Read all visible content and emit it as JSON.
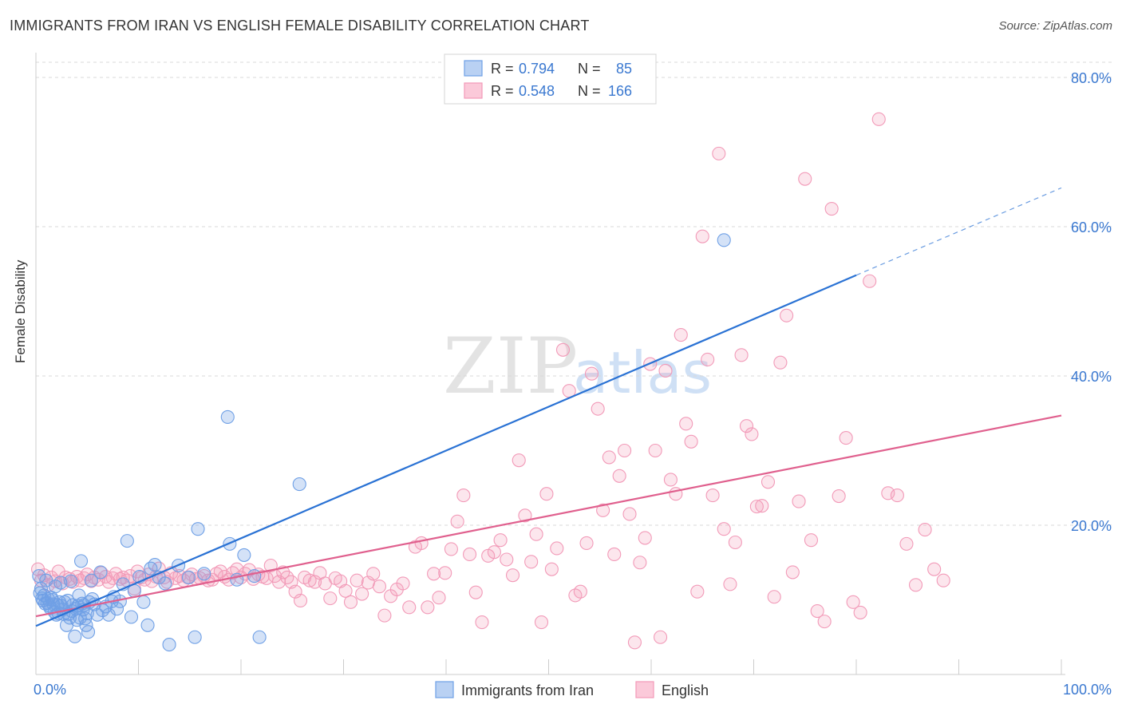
{
  "title": "IMMIGRANTS FROM IRAN VS ENGLISH FEMALE DISABILITY CORRELATION CHART",
  "source": "Source: ZipAtlas.com",
  "watermark": {
    "zip": "ZIP",
    "atlas": "atlas"
  },
  "colors": {
    "blue": "#6fa0e6",
    "blue_line": "#2a72d4",
    "pink": "#f29ab8",
    "pink_line": "#e0608e",
    "grid": "#d8d8d8",
    "tick_label": "#3a78d0"
  },
  "chart_data": {
    "type": "scatter",
    "xlabel": "",
    "ylabel": "Female Disability",
    "xlim": [
      0,
      100
    ],
    "ylim": [
      0,
      80
    ],
    "x_tick_labels": [
      "0.0%",
      "100.0%"
    ],
    "y_ticks": [
      20,
      40,
      60,
      80
    ],
    "y_tick_labels": [
      "20.0%",
      "40.0%",
      "60.0%",
      "80.0%"
    ],
    "grid": true,
    "legend_position": "top-center",
    "legend": [
      {
        "r_label": "R =",
        "r": "0.794",
        "n_label": "N =",
        "n": "85"
      },
      {
        "r_label": "R =",
        "r": "0.548",
        "n_label": "N =",
        "n": "166"
      }
    ],
    "bottom_legend": [
      "Immigrants from Iran",
      "English"
    ],
    "series": [
      {
        "name": "Immigrants from Iran",
        "trend": {
          "x0": 0,
          "y0": 6.5,
          "x1": 80,
          "y1": 53.5,
          "dash_to_x": 100,
          "dash_to_y": 65.2
        },
        "points": [
          [
            0.3,
            13.2
          ],
          [
            0.4,
            10.9
          ],
          [
            0.5,
            11.5
          ],
          [
            0.6,
            10.2
          ],
          [
            0.7,
            9.9
          ],
          [
            0.8,
            10.6
          ],
          [
            0.9,
            9.5
          ],
          [
            1.0,
            12.6
          ],
          [
            1.1,
            9.6
          ],
          [
            1.2,
            10.1
          ],
          [
            1.3,
            9.2
          ],
          [
            1.4,
            8.9
          ],
          [
            1.5,
            10.3
          ],
          [
            1.6,
            10.0
          ],
          [
            1.7,
            9.4
          ],
          [
            1.8,
            8.4
          ],
          [
            1.9,
            11.8
          ],
          [
            2.0,
            8.0
          ],
          [
            2.1,
            9.3
          ],
          [
            2.2,
            8.2
          ],
          [
            2.3,
            9.7
          ],
          [
            2.4,
            12.3
          ],
          [
            2.5,
            9.2
          ],
          [
            2.6,
            8.7
          ],
          [
            2.7,
            8.1
          ],
          [
            2.8,
            9.7
          ],
          [
            3.0,
            6.6
          ],
          [
            3.1,
            9.9
          ],
          [
            3.2,
            8.1
          ],
          [
            3.3,
            7.6
          ],
          [
            3.4,
            12.5
          ],
          [
            3.5,
            8.5
          ],
          [
            3.6,
            9.3
          ],
          [
            3.8,
            5.1
          ],
          [
            3.9,
            8.8
          ],
          [
            4.0,
            7.3
          ],
          [
            4.1,
            9.2
          ],
          [
            4.2,
            10.6
          ],
          [
            4.3,
            7.6
          ],
          [
            4.4,
            15.2
          ],
          [
            4.5,
            9.5
          ],
          [
            4.6,
            8.7
          ],
          [
            4.7,
            9.3
          ],
          [
            4.8,
            7.5
          ],
          [
            4.9,
            6.6
          ],
          [
            5.0,
            8.2
          ],
          [
            5.1,
            5.7
          ],
          [
            5.2,
            9.7
          ],
          [
            5.4,
            12.6
          ],
          [
            5.5,
            10.1
          ],
          [
            5.7,
            9.4
          ],
          [
            6.0,
            8.0
          ],
          [
            6.3,
            13.7
          ],
          [
            6.5,
            8.6
          ],
          [
            6.8,
            9.1
          ],
          [
            7.1,
            8.0
          ],
          [
            7.4,
            9.8
          ],
          [
            7.6,
            10.4
          ],
          [
            7.9,
            8.8
          ],
          [
            8.2,
            9.8
          ],
          [
            8.5,
            12.1
          ],
          [
            8.9,
            17.9
          ],
          [
            9.3,
            7.7
          ],
          [
            9.6,
            11.2
          ],
          [
            10.1,
            13.1
          ],
          [
            10.5,
            9.7
          ],
          [
            10.9,
            6.6
          ],
          [
            11.2,
            14.2
          ],
          [
            11.6,
            14.7
          ],
          [
            12.0,
            13.0
          ],
          [
            12.6,
            12.2
          ],
          [
            13.0,
            4.0
          ],
          [
            13.9,
            14.6
          ],
          [
            14.9,
            13.0
          ],
          [
            15.5,
            5.0
          ],
          [
            15.8,
            19.5
          ],
          [
            16.4,
            13.5
          ],
          [
            18.7,
            34.5
          ],
          [
            18.9,
            17.5
          ],
          [
            19.6,
            12.7
          ],
          [
            20.3,
            16.0
          ],
          [
            21.3,
            13.2
          ],
          [
            21.8,
            5.0
          ],
          [
            25.7,
            25.5
          ],
          [
            67.1,
            58.2
          ]
        ]
      },
      {
        "name": "English",
        "trend": {
          "x0": 0,
          "y0": 7.8,
          "x1": 100,
          "y1": 34.7
        },
        "points": [
          [
            0.2,
            14.1
          ],
          [
            0.5,
            12.6
          ],
          [
            0.8,
            13.3
          ],
          [
            1.2,
            12.0
          ],
          [
            1.5,
            13.0
          ],
          [
            1.9,
            12.5
          ],
          [
            2.2,
            13.8
          ],
          [
            2.6,
            12.2
          ],
          [
            2.9,
            13.0
          ],
          [
            3.3,
            12.8
          ],
          [
            3.6,
            12.4
          ],
          [
            4.0,
            13.1
          ],
          [
            4.3,
            12.6
          ],
          [
            4.7,
            12.9
          ],
          [
            5.0,
            13.4
          ],
          [
            5.4,
            12.5
          ],
          [
            5.7,
            13.0
          ],
          [
            6.1,
            12.7
          ],
          [
            6.4,
            13.6
          ],
          [
            6.8,
            13.1
          ],
          [
            7.1,
            12.4
          ],
          [
            7.5,
            12.9
          ],
          [
            7.8,
            13.5
          ],
          [
            8.2,
            12.8
          ],
          [
            8.5,
            13.0
          ],
          [
            8.9,
            12.6
          ],
          [
            9.2,
            13.2
          ],
          [
            9.6,
            11.5
          ],
          [
            9.9,
            13.8
          ],
          [
            10.3,
            13.0
          ],
          [
            10.6,
            12.7
          ],
          [
            11.0,
            13.4
          ],
          [
            11.3,
            12.5
          ],
          [
            11.7,
            13.1
          ],
          [
            12.0,
            14.2
          ],
          [
            12.5,
            13.0
          ],
          [
            12.8,
            12.4
          ],
          [
            13.2,
            13.6
          ],
          [
            13.6,
            12.9
          ],
          [
            14.0,
            13.2
          ],
          [
            14.4,
            12.6
          ],
          [
            14.8,
            13.0
          ],
          [
            15.2,
            13.4
          ],
          [
            15.6,
            12.8
          ],
          [
            16.0,
            12.9
          ],
          [
            16.4,
            13.2
          ],
          [
            16.8,
            12.6
          ],
          [
            17.2,
            12.7
          ],
          [
            17.6,
            13.5
          ],
          [
            18.0,
            13.8
          ],
          [
            18.4,
            13.1
          ],
          [
            18.8,
            12.7
          ],
          [
            19.2,
            13.6
          ],
          [
            19.6,
            14.1
          ],
          [
            20.0,
            13.0
          ],
          [
            20.4,
            13.5
          ],
          [
            20.8,
            14.0
          ],
          [
            21.2,
            12.8
          ],
          [
            21.7,
            13.4
          ],
          [
            22.1,
            13.1
          ],
          [
            22.5,
            12.9
          ],
          [
            22.9,
            14.6
          ],
          [
            23.3,
            13.2
          ],
          [
            23.7,
            12.4
          ],
          [
            24.1,
            13.7
          ],
          [
            24.5,
            13.0
          ],
          [
            24.9,
            12.4
          ],
          [
            25.3,
            11.1
          ],
          [
            25.8,
            9.9
          ],
          [
            26.2,
            13.0
          ],
          [
            26.7,
            12.6
          ],
          [
            27.2,
            12.4
          ],
          [
            27.7,
            13.6
          ],
          [
            28.2,
            12.2
          ],
          [
            28.7,
            10.2
          ],
          [
            29.2,
            12.9
          ],
          [
            29.7,
            12.5
          ],
          [
            30.2,
            11.2
          ],
          [
            30.7,
            9.7
          ],
          [
            31.3,
            12.6
          ],
          [
            31.8,
            10.8
          ],
          [
            32.4,
            12.3
          ],
          [
            32.9,
            13.5
          ],
          [
            33.5,
            11.8
          ],
          [
            34.0,
            7.9
          ],
          [
            34.6,
            10.5
          ],
          [
            35.2,
            11.4
          ],
          [
            35.8,
            12.2
          ],
          [
            36.4,
            9.0
          ],
          [
            37.0,
            17.1
          ],
          [
            37.6,
            17.6
          ],
          [
            38.2,
            9.0
          ],
          [
            38.8,
            13.5
          ],
          [
            39.3,
            10.3
          ],
          [
            39.9,
            13.6
          ],
          [
            40.5,
            16.8
          ],
          [
            41.1,
            20.5
          ],
          [
            41.7,
            24.0
          ],
          [
            42.3,
            16.1
          ],
          [
            42.9,
            11.0
          ],
          [
            43.5,
            7.0
          ],
          [
            44.1,
            15.9
          ],
          [
            44.7,
            16.4
          ],
          [
            45.3,
            18.0
          ],
          [
            45.9,
            15.4
          ],
          [
            46.5,
            13.3
          ],
          [
            47.1,
            28.7
          ],
          [
            47.7,
            21.3
          ],
          [
            48.3,
            15.1
          ],
          [
            48.8,
            18.8
          ],
          [
            49.3,
            7.0
          ],
          [
            49.8,
            24.2
          ],
          [
            50.3,
            14.1
          ],
          [
            50.8,
            16.9
          ],
          [
            51.4,
            43.5
          ],
          [
            52.0,
            38.0
          ],
          [
            52.6,
            10.6
          ],
          [
            53.1,
            11.1
          ],
          [
            53.7,
            17.6
          ],
          [
            54.2,
            40.3
          ],
          [
            54.8,
            35.6
          ],
          [
            55.3,
            22.0
          ],
          [
            55.9,
            29.1
          ],
          [
            56.4,
            16.1
          ],
          [
            56.9,
            26.6
          ],
          [
            57.4,
            30.0
          ],
          [
            57.9,
            21.5
          ],
          [
            58.4,
            4.3
          ],
          [
            58.9,
            15.0
          ],
          [
            59.4,
            18.3
          ],
          [
            59.9,
            41.6
          ],
          [
            60.4,
            30.0
          ],
          [
            60.9,
            5.0
          ],
          [
            61.4,
            40.7
          ],
          [
            61.9,
            26.1
          ],
          [
            62.4,
            24.2
          ],
          [
            62.9,
            45.5
          ],
          [
            63.4,
            33.6
          ],
          [
            63.9,
            31.2
          ],
          [
            64.5,
            11.1
          ],
          [
            65.0,
            58.7
          ],
          [
            65.5,
            42.2
          ],
          [
            66.0,
            24.0
          ],
          [
            66.6,
            69.8
          ],
          [
            67.1,
            19.5
          ],
          [
            67.7,
            12.1
          ],
          [
            68.2,
            17.7
          ],
          [
            68.8,
            42.8
          ],
          [
            69.3,
            33.3
          ],
          [
            69.8,
            32.2
          ],
          [
            70.3,
            22.5
          ],
          [
            70.8,
            22.6
          ],
          [
            71.4,
            25.8
          ],
          [
            72.0,
            10.4
          ],
          [
            72.6,
            41.8
          ],
          [
            73.2,
            48.1
          ],
          [
            73.8,
            13.7
          ],
          [
            74.4,
            23.2
          ],
          [
            75.0,
            66.4
          ],
          [
            75.6,
            18.0
          ],
          [
            76.2,
            8.5
          ],
          [
            76.9,
            7.1
          ],
          [
            77.6,
            62.4
          ],
          [
            78.3,
            23.9
          ],
          [
            79.0,
            31.7
          ],
          [
            79.7,
            9.7
          ],
          [
            80.4,
            8.3
          ],
          [
            81.3,
            52.7
          ],
          [
            82.2,
            74.4
          ],
          [
            83.1,
            24.3
          ],
          [
            84.0,
            24.0
          ],
          [
            84.9,
            17.5
          ],
          [
            85.8,
            12.0
          ],
          [
            86.7,
            19.4
          ],
          [
            87.6,
            14.1
          ],
          [
            88.5,
            12.6
          ]
        ]
      }
    ]
  }
}
